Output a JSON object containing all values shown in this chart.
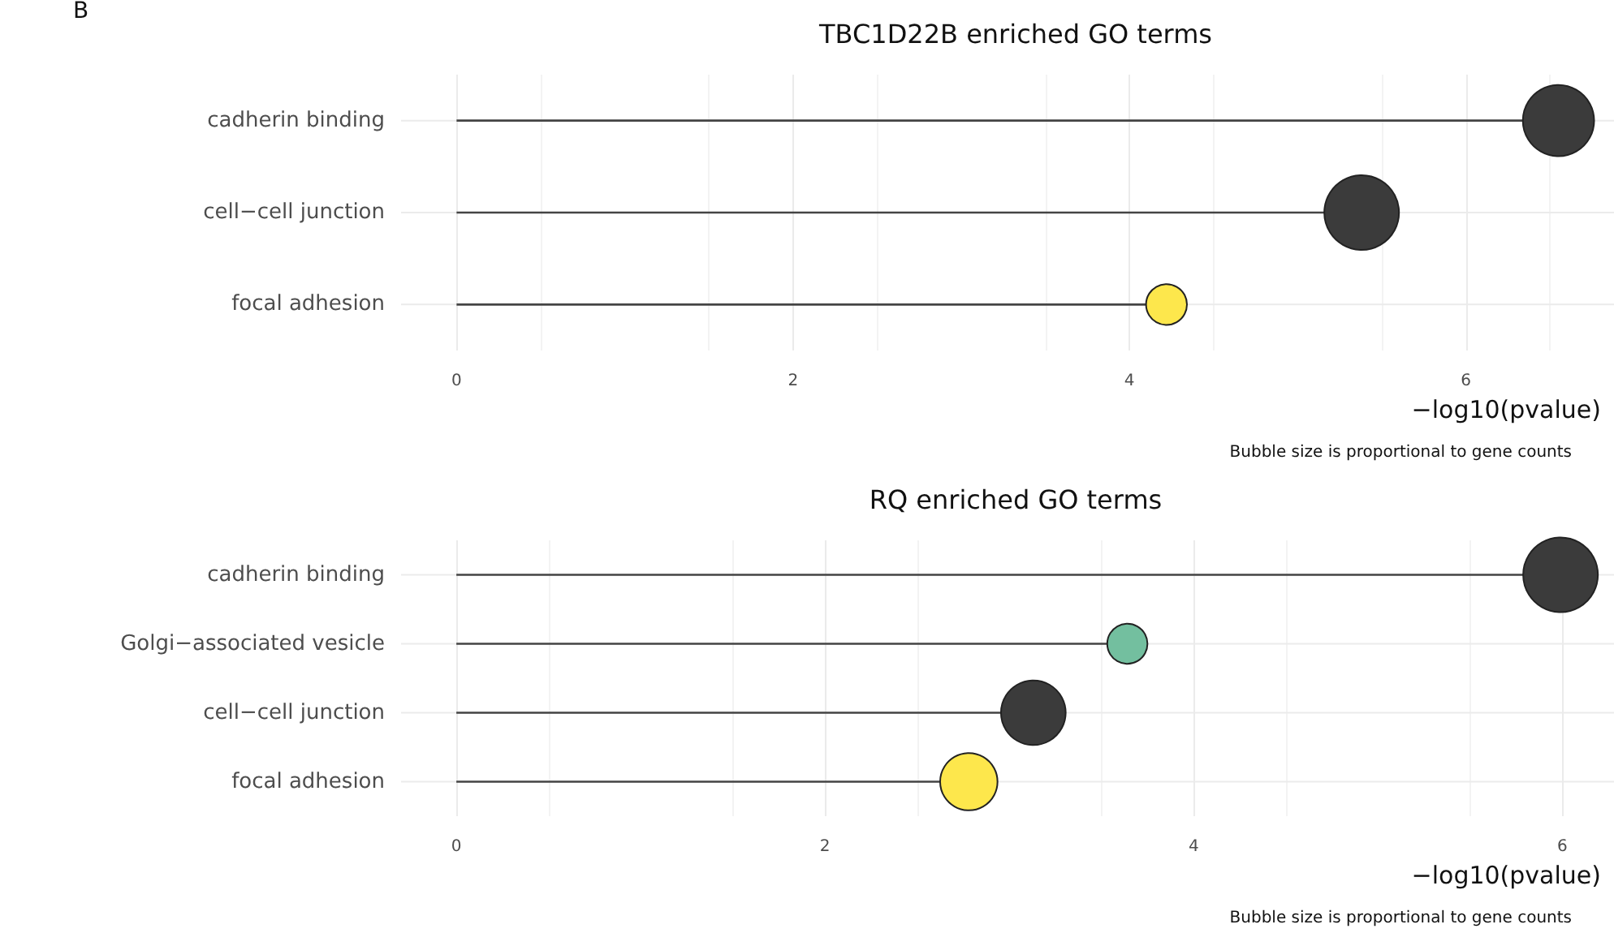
{
  "chart_data": [
    {
      "type": "lollipop",
      "title": "TBC1D22B enriched GO terms",
      "xlabel": "−log10(pvalue)",
      "annotations": [
        "B",
        "Bubble size is proportional to gene counts"
      ],
      "categories": [
        "cadherin binding",
        "cell−cell junction",
        "focal adhesion"
      ],
      "orientation": "horizontal",
      "values": [
        6.55,
        5.38,
        4.22
      ],
      "sizes": [
        0.91,
        1,
        0.3
      ],
      "colors": [
        "#3b3b3b",
        "#3b3b3b",
        "#fde74c"
      ],
      "xlim": [
        -0.33,
        6.88
      ],
      "xticks": [
        0,
        2,
        4,
        6
      ],
      "grid": true
    },
    {
      "type": "lollipop",
      "title": "RQ enriched GO terms",
      "xlabel": "−log10(pvalue)",
      "annotations": [
        "Bubble size is proportional to gene counts"
      ],
      "categories": [
        "cadherin binding",
        "Golgi−associated vesicle",
        "cell−cell junction",
        "focal adhesion"
      ],
      "orientation": "horizontal",
      "values": [
        5.99,
        3.64,
        3.13,
        2.78
      ],
      "sizes": [
        1,
        0.29,
        0.75,
        0.59
      ],
      "colors": [
        "#3b3b3b",
        "#73bf9f",
        "#3b3b3b",
        "#fde74c"
      ],
      "xlim": [
        -0.3,
        6.28
      ],
      "xticks": [
        0,
        2,
        4,
        6
      ],
      "grid": true
    }
  ]
}
